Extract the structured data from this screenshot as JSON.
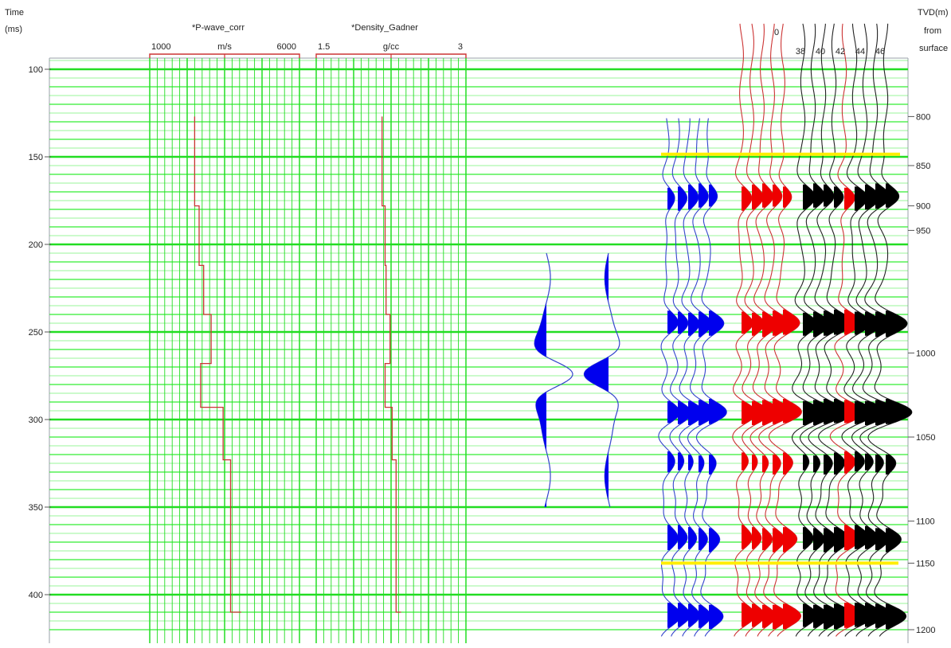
{
  "colors": {
    "grid_major": "#22dd22",
    "grid_minor": "#33ee33",
    "log_curve": "#cc3333",
    "track_bracket": "#cc3333",
    "wavelet_fill": "#0000ee",
    "wavelet_line": "#3344cc",
    "synthetic_fill": "#0000ee",
    "red_trace_fill": "#ee0000",
    "black_trace_fill": "#000000",
    "horizon": "#ffee00"
  },
  "headers": {
    "time_title": "Time",
    "time_unit": "(ms)",
    "tvd_line1": "TVD(m)",
    "tvd_line2": "from",
    "tvd_line3": "surface",
    "zero_label": "0"
  },
  "chart_data": {
    "type": "line",
    "time_axis": {
      "label": "Time (ms)",
      "range": [
        90,
        425
      ],
      "ticks": [
        100,
        150,
        200,
        250,
        300,
        350,
        400
      ],
      "ticks_text": [
        "100",
        "150",
        "200",
        "250",
        "300",
        "350",
        "400"
      ]
    },
    "depth_axis": {
      "label": "TVD(m) from surface",
      "ticks": [
        800,
        850,
        900,
        950,
        1000,
        1050,
        1100,
        1150,
        1200
      ],
      "ticks_text": [
        "800",
        "850",
        "900",
        "950",
        "1000",
        "1050",
        "1100",
        "1150",
        "1200"
      ],
      "tick_times": [
        127,
        155,
        178,
        192,
        262,
        310,
        358,
        382,
        420
      ]
    },
    "tracks": [
      {
        "name": "*P-wave_corr",
        "unit": "m/s",
        "scale_min_label": "1000",
        "scale_max_label": "6000",
        "range": [
          1000,
          6000
        ],
        "series": [
          {
            "time": 127,
            "value": 2500
          },
          {
            "time": 178,
            "value": 2500
          },
          {
            "time": 178,
            "value": 2650
          },
          {
            "time": 212,
            "value": 2650
          },
          {
            "time": 212,
            "value": 2800
          },
          {
            "time": 240,
            "value": 2800
          },
          {
            "time": 240,
            "value": 3050
          },
          {
            "time": 268,
            "value": 3050
          },
          {
            "time": 268,
            "value": 2700
          },
          {
            "time": 293,
            "value": 2700
          },
          {
            "time": 293,
            "value": 3450
          },
          {
            "time": 323,
            "value": 3450
          },
          {
            "time": 323,
            "value": 3700
          },
          {
            "time": 410,
            "value": 3700
          },
          {
            "time": 410,
            "value": 4050
          }
        ]
      },
      {
        "name": "*Density_Gadner",
        "unit": "g/cc",
        "scale_min_label": "1.5",
        "scale_max_label": "3",
        "range": [
          1.5,
          3
        ],
        "series": [
          {
            "time": 127,
            "value": 2.16
          },
          {
            "time": 178,
            "value": 2.16
          },
          {
            "time": 178,
            "value": 2.19
          },
          {
            "time": 212,
            "value": 2.19
          },
          {
            "time": 212,
            "value": 2.2
          },
          {
            "time": 240,
            "value": 2.2
          },
          {
            "time": 240,
            "value": 2.24
          },
          {
            "time": 268,
            "value": 2.24
          },
          {
            "time": 268,
            "value": 2.19
          },
          {
            "time": 293,
            "value": 2.19
          },
          {
            "time": 293,
            "value": 2.26
          },
          {
            "time": 323,
            "value": 2.26
          },
          {
            "time": 323,
            "value": 2.3
          },
          {
            "time": 410,
            "value": 2.3
          },
          {
            "time": 410,
            "value": 2.35
          }
        ]
      }
    ],
    "wavelet_range_ms": [
      205,
      350
    ],
    "synthetic_event_times": [
      173,
      245,
      296,
      324,
      368,
      412
    ],
    "gather_trace_labels": [
      "38",
      "40",
      "42",
      "44",
      "46"
    ],
    "horizons_ms": [
      149,
      382
    ],
    "grid": true
  }
}
